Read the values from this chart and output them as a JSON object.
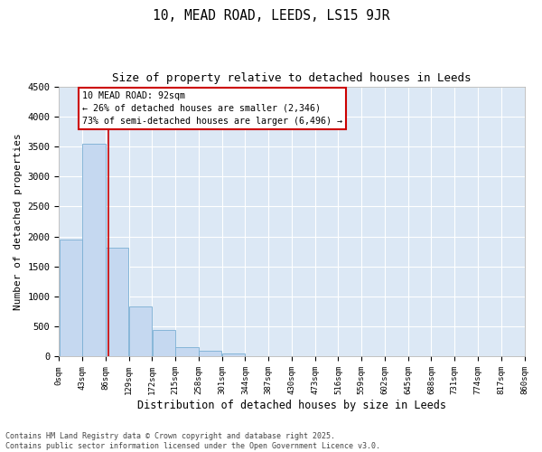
{
  "title1": "10, MEAD ROAD, LEEDS, LS15 9JR",
  "title2": "Size of property relative to detached houses in Leeds",
  "xlabel": "Distribution of detached houses by size in Leeds",
  "ylabel": "Number of detached properties",
  "bar_color": "#c5d8f0",
  "bar_edge_color": "#7bafd4",
  "background_color": "#dce8f5",
  "grid_color": "#ffffff",
  "annotation_box_color": "#cc0000",
  "property_line_color": "#cc0000",
  "property_sqm": 92,
  "annotation_text": "10 MEAD ROAD: 92sqm\n← 26% of detached houses are smaller (2,346)\n73% of semi-detached houses are larger (6,496) →",
  "bin_edges": [
    0,
    43,
    86,
    129,
    172,
    215,
    258,
    301,
    344,
    387,
    430,
    473,
    516,
    559,
    602,
    645,
    688,
    731,
    774,
    817,
    860
  ],
  "bar_heights": [
    1950,
    3550,
    1820,
    840,
    450,
    165,
    95,
    55,
    0,
    0,
    0,
    0,
    0,
    0,
    0,
    0,
    0,
    0,
    0,
    0
  ],
  "ylim": [
    0,
    4500
  ],
  "yticks": [
    0,
    500,
    1000,
    1500,
    2000,
    2500,
    3000,
    3500,
    4000,
    4500
  ],
  "footnote1": "Contains HM Land Registry data © Crown copyright and database right 2025.",
  "footnote2": "Contains public sector information licensed under the Open Government Licence v3.0."
}
